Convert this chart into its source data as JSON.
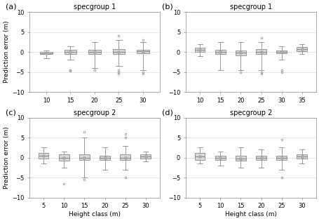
{
  "panels": [
    {
      "label": "(a)",
      "title": "specgroup 1",
      "xlabel": "",
      "ylabel": "Prediction error (m)",
      "xlabels": [
        10,
        15,
        20,
        25,
        30
      ],
      "ylim": [
        -10,
        10
      ],
      "yticks": [
        -10,
        -5,
        0,
        5,
        10
      ],
      "boxes": [
        {
          "med": -0.3,
          "q1": -0.5,
          "q3": 0.0,
          "whislo": -1.5,
          "whishi": 0.3,
          "mean": -0.3,
          "fliers": []
        },
        {
          "med": 0.0,
          "q1": -0.5,
          "q3": 0.5,
          "whislo": -2.0,
          "whishi": 1.5,
          "mean": 0.0,
          "fliers": [
            -4.5,
            -4.8
          ]
        },
        {
          "med": 0.0,
          "q1": -0.5,
          "q3": 0.5,
          "whislo": -4.0,
          "whishi": 2.5,
          "mean": 0.0,
          "fliers": [
            -4.5
          ]
        },
        {
          "med": 0.0,
          "q1": -0.5,
          "q3": 0.8,
          "whislo": -3.5,
          "whishi": 3.0,
          "mean": 0.0,
          "fliers": [
            -4.5,
            -5.0,
            -5.5,
            4.0
          ]
        },
        {
          "med": 0.2,
          "q1": -0.3,
          "q3": 0.5,
          "whislo": -4.5,
          "whishi": 2.5,
          "mean": 0.1,
          "fliers": [
            -5.5,
            -5.0,
            3.0
          ]
        }
      ]
    },
    {
      "label": "(b)",
      "title": "specgroup 1",
      "xlabel": "",
      "ylabel": "",
      "xlabels": [
        10,
        15,
        20,
        25,
        30,
        35
      ],
      "ylim": [
        -10,
        10
      ],
      "yticks": [
        -10,
        -5,
        0,
        5,
        10
      ],
      "boxes": [
        {
          "med": 0.5,
          "q1": 0.0,
          "q3": 1.0,
          "whislo": -1.0,
          "whishi": 2.0,
          "mean": 0.5,
          "fliers": []
        },
        {
          "med": 0.0,
          "q1": -0.5,
          "q3": 0.5,
          "whislo": -4.5,
          "whishi": 2.5,
          "mean": 0.0,
          "fliers": []
        },
        {
          "med": -0.2,
          "q1": -0.8,
          "q3": 0.3,
          "whislo": -4.5,
          "whishi": 2.5,
          "mean": -0.2,
          "fliers": [
            -5.0
          ]
        },
        {
          "med": 0.0,
          "q1": -0.5,
          "q3": 0.8,
          "whislo": -4.5,
          "whishi": 2.5,
          "mean": 0.0,
          "fliers": [
            -5.0,
            -5.5,
            3.5
          ]
        },
        {
          "med": 0.0,
          "q1": -0.3,
          "q3": 0.3,
          "whislo": -2.0,
          "whishi": 1.5,
          "mean": 0.0,
          "fliers": [
            -4.5,
            -5.0
          ]
        },
        {
          "med": 0.8,
          "q1": 0.2,
          "q3": 1.2,
          "whislo": -0.5,
          "whishi": 2.0,
          "mean": 0.8,
          "fliers": []
        }
      ]
    },
    {
      "label": "(c)",
      "title": "specgroup 2",
      "xlabel": "Height class (m)",
      "ylabel": "Prediction error (m)",
      "xlabels": [
        5,
        10,
        15,
        20,
        25,
        30
      ],
      "ylim": [
        -10,
        10
      ],
      "yticks": [
        -10,
        -5,
        0,
        5,
        10
      ],
      "boxes": [
        {
          "med": 0.5,
          "q1": -0.2,
          "q3": 1.2,
          "whislo": -1.5,
          "whishi": 2.5,
          "mean": 0.5,
          "fliers": []
        },
        {
          "med": -0.1,
          "q1": -0.8,
          "q3": 0.8,
          "whislo": -2.5,
          "whishi": 1.5,
          "mean": -0.1,
          "fliers": [
            -6.5
          ]
        },
        {
          "med": 0.0,
          "q1": -0.5,
          "q3": 0.8,
          "whislo": -5.0,
          "whishi": 5.0,
          "mean": 0.0,
          "fliers": [
            -5.5,
            6.5
          ]
        },
        {
          "med": 0.0,
          "q1": -0.5,
          "q3": 0.5,
          "whislo": -3.0,
          "whishi": 2.5,
          "mean": 0.0,
          "fliers": []
        },
        {
          "med": 0.0,
          "q1": -0.5,
          "q3": 0.8,
          "whislo": -3.0,
          "whishi": 3.0,
          "mean": 0.0,
          "fliers": [
            -5.0,
            6.0,
            5.0
          ]
        },
        {
          "med": 0.3,
          "q1": -0.2,
          "q3": 0.8,
          "whislo": -1.0,
          "whishi": 1.5,
          "mean": 0.3,
          "fliers": []
        }
      ]
    },
    {
      "label": "(d)",
      "title": "specgroup 2",
      "xlabel": "Height class (m)",
      "ylabel": "",
      "xlabels": [
        5,
        10,
        15,
        20,
        25,
        30
      ],
      "ylim": [
        -10,
        10
      ],
      "yticks": [
        -10,
        -5,
        0,
        5,
        10
      ],
      "boxes": [
        {
          "med": 0.3,
          "q1": -0.5,
          "q3": 1.2,
          "whislo": -1.5,
          "whishi": 2.5,
          "mean": 0.3,
          "fliers": []
        },
        {
          "med": 0.0,
          "q1": -0.5,
          "q3": 0.5,
          "whislo": -2.0,
          "whishi": 1.5,
          "mean": 0.0,
          "fliers": []
        },
        {
          "med": -0.2,
          "q1": -0.8,
          "q3": 0.5,
          "whislo": -2.5,
          "whishi": 2.5,
          "mean": -0.2,
          "fliers": []
        },
        {
          "med": 0.0,
          "q1": -0.5,
          "q3": 0.5,
          "whislo": -2.5,
          "whishi": 2.0,
          "mean": 0.0,
          "fliers": []
        },
        {
          "med": 0.0,
          "q1": -0.5,
          "q3": 0.5,
          "whislo": -3.0,
          "whishi": 2.5,
          "mean": 0.0,
          "fliers": [
            -5.0,
            4.5
          ]
        },
        {
          "med": 0.3,
          "q1": -0.2,
          "q3": 0.8,
          "whislo": -1.5,
          "whishi": 2.0,
          "mean": 0.3,
          "fliers": []
        }
      ]
    }
  ],
  "box_facecolor": "#d9d9d9",
  "box_edgecolor": "#888888",
  "median_color": "#888888",
  "whisker_color": "#888888",
  "flier_color": "#888888",
  "mean_marker_color": "#aaaaaa"
}
